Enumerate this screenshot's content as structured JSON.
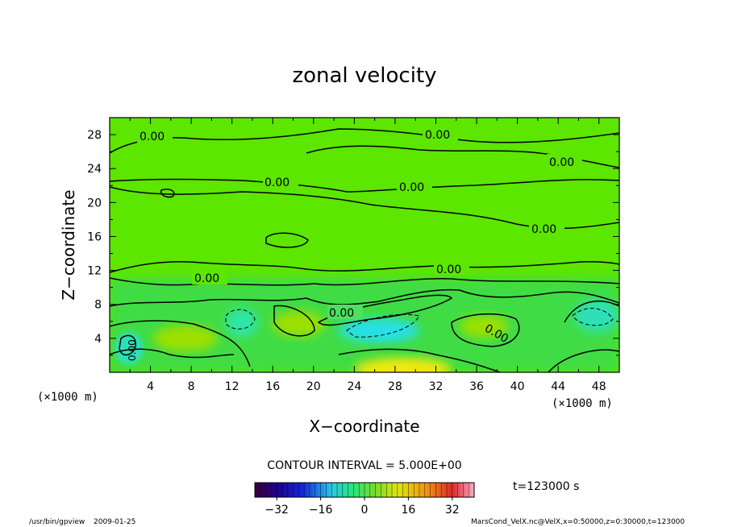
{
  "chart_data": {
    "type": "heatmap",
    "title": "zonal velocity",
    "xlabel": "X−coordinate",
    "ylabel": "Z−coordinate",
    "x_unit": "(×1000 m)",
    "y_unit": "(×1000 m)",
    "xlim": [
      0,
      50
    ],
    "ylim": [
      0,
      30
    ],
    "x_ticks": [
      4,
      8,
      12,
      16,
      20,
      24,
      28,
      32,
      36,
      40,
      44,
      48
    ],
    "y_ticks": [
      4,
      8,
      12,
      16,
      20,
      24,
      28
    ],
    "contour_interval_text": "CONTOUR INTERVAL = 5.000E+00",
    "time_text": "t=123000 s",
    "contour_labels": [
      "0.00",
      "0.00",
      "0.00",
      "0.00",
      "0.00",
      "0.00",
      "0.00",
      "0.00",
      "0.00",
      "0.00",
      "0.00"
    ],
    "colorbar": {
      "range": [
        -40,
        40
      ],
      "ticks": [
        -32,
        -16,
        0,
        16,
        32
      ],
      "tick_labels": [
        "−32",
        "−16",
        "0",
        "16",
        "32"
      ]
    },
    "colors": {
      "field_base": "#5ce600",
      "lower_green": "#3fdc45",
      "positive_core": "#f2e80a",
      "negative_core": "#25e0e8"
    }
  },
  "footer": {
    "program": "/usr/bin/gpview",
    "date": "2009-01-25",
    "source": "MarsCond_VelX.nc@VelX,x=0:50000,z=0:30000,t=123000"
  }
}
